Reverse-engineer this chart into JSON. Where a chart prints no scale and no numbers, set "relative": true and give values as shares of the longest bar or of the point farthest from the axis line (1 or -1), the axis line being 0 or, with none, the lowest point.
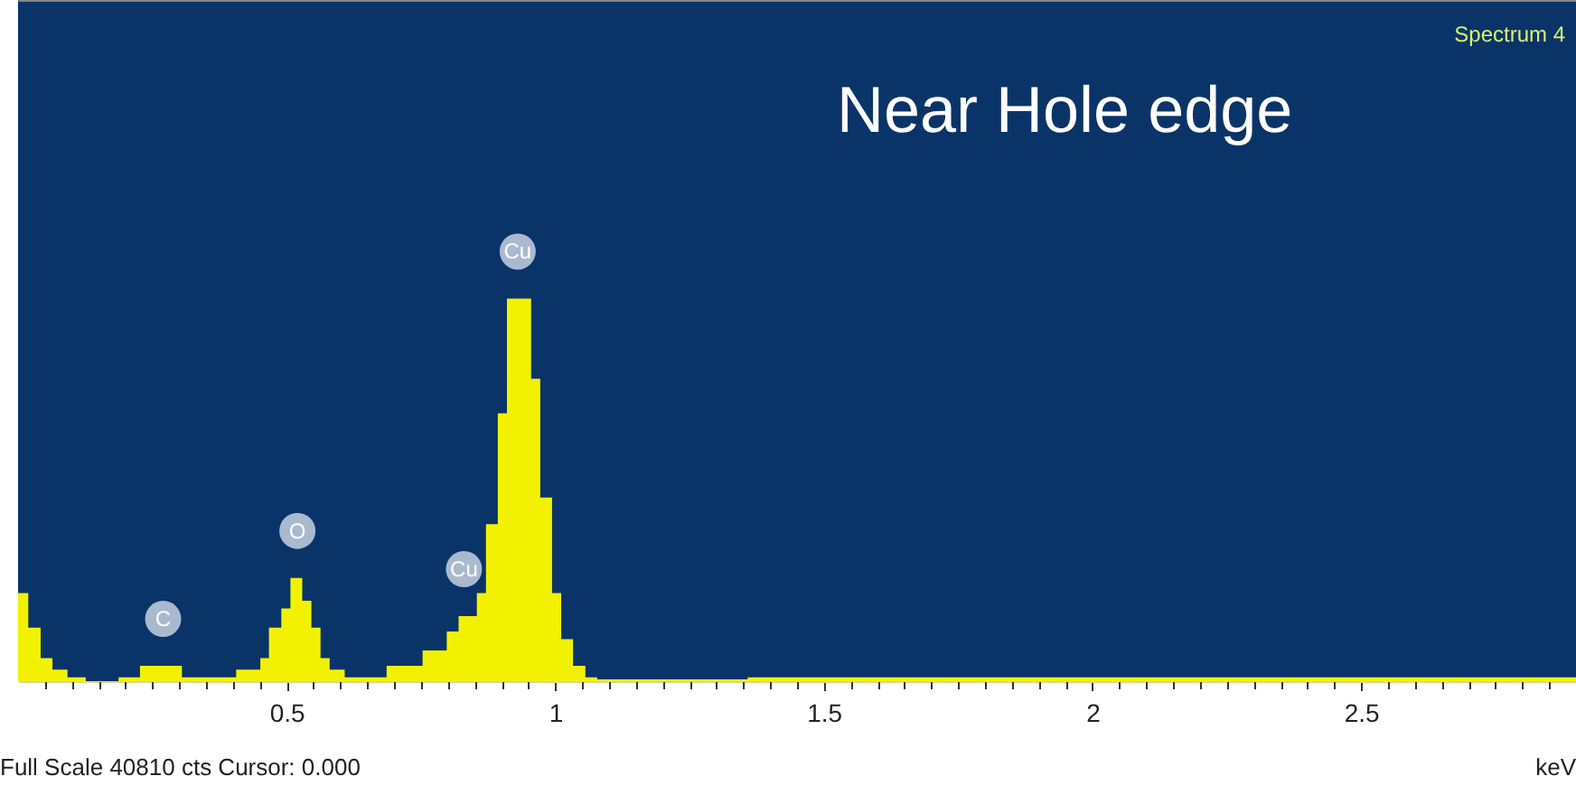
{
  "chart_data": {
    "type": "area",
    "line_style": "step",
    "relative": true,
    "title": "Near Hole edge",
    "xlabel": "keV",
    "color": "#f2f200",
    "x": [
      0.0,
      0.019,
      0.042,
      0.064,
      0.092,
      0.126,
      0.187,
      0.227,
      0.305,
      0.406,
      0.451,
      0.467,
      0.49,
      0.507,
      0.529,
      0.546,
      0.563,
      0.58,
      0.608,
      0.686,
      0.753,
      0.798,
      0.82,
      0.854,
      0.871,
      0.893,
      0.91,
      0.955,
      0.972,
      0.994,
      1.011,
      1.033,
      1.056,
      1.078,
      1.358,
      2.9
    ],
    "values": [
      0.23,
      0.14,
      0.06,
      0.03,
      0.01,
      0,
      0.01,
      0.04,
      0.01,
      0.03,
      0.06,
      0.14,
      0.19,
      0.27,
      0.21,
      0.14,
      0.06,
      0.03,
      0.01,
      0.04,
      0.08,
      0.13,
      0.17,
      0.23,
      0.41,
      0.7,
      1.0,
      0.79,
      0.48,
      0.23,
      0.11,
      0.04,
      0.01,
      0.005,
      0.01,
      0.01
    ],
    "xlim": [
      0,
      2.9
    ],
    "xticks": [
      {
        "value": 0.05,
        "label": null
      },
      {
        "value": 0.1,
        "label": null
      },
      {
        "value": 0.15,
        "label": null
      },
      {
        "value": 0.2,
        "label": null
      },
      {
        "value": 0.25,
        "label": null
      },
      {
        "value": 0.3,
        "label": null
      },
      {
        "value": 0.35,
        "label": null
      },
      {
        "value": 0.4,
        "label": null
      },
      {
        "value": 0.45,
        "label": null
      },
      0.5,
      {
        "value": 0.55,
        "label": null
      },
      {
        "value": 0.6,
        "label": null
      },
      {
        "value": 0.65,
        "label": null
      },
      {
        "value": 0.7,
        "label": null
      },
      {
        "value": 0.75,
        "label": null
      },
      {
        "value": 0.8,
        "label": null
      },
      {
        "value": 0.85,
        "label": null
      },
      {
        "value": 0.9,
        "label": null
      },
      {
        "value": 0.95,
        "label": null
      },
      1,
      {
        "value": 1.05,
        "label": null
      },
      {
        "value": 1.1,
        "label": null
      },
      {
        "value": 1.15,
        "label": null
      },
      {
        "value": 1.2,
        "label": null
      },
      {
        "value": 1.25,
        "label": null
      },
      {
        "value": 1.3,
        "label": null
      },
      {
        "value": 1.35,
        "label": null
      },
      {
        "value": 1.4,
        "label": null
      },
      {
        "value": 1.45,
        "label": null
      },
      1.5,
      {
        "value": 1.55,
        "label": null
      },
      {
        "value": 1.6,
        "label": null
      },
      {
        "value": 1.65,
        "label": null
      },
      {
        "value": 1.7,
        "label": null
      },
      {
        "value": 1.75,
        "label": null
      },
      {
        "value": 1.8,
        "label": null
      },
      {
        "value": 1.85,
        "label": null
      },
      {
        "value": 1.9,
        "label": null
      },
      {
        "value": 1.95,
        "label": null
      },
      2,
      {
        "value": 2.05,
        "label": null
      },
      {
        "value": 2.1,
        "label": null
      },
      {
        "value": 2.15,
        "label": null
      },
      {
        "value": 2.2,
        "label": null
      },
      {
        "value": 2.25,
        "label": null
      },
      {
        "value": 2.3,
        "label": null
      },
      {
        "value": 2.35,
        "label": null
      },
      {
        "value": 2.4,
        "label": null
      },
      {
        "value": 2.45,
        "label": null
      },
      2.5,
      {
        "value": 2.55,
        "label": null
      },
      {
        "value": 2.6,
        "label": null
      },
      {
        "value": 2.65,
        "label": null
      },
      {
        "value": 2.7,
        "label": null
      },
      {
        "value": 2.75,
        "label": null
      },
      {
        "value": 2.8,
        "label": null
      },
      {
        "value": 2.85,
        "label": null
      }
    ],
    "annotations": [
      "Spectrum 4",
      "Full Scale 40810 cts Cursor: 0.000",
      {
        "text": "C",
        "x": 0.27,
        "y": 0.04
      },
      {
        "text": "O",
        "x": 0.52,
        "y": 0.27
      },
      {
        "text": "Cu",
        "x": 0.83,
        "y": 0.17
      },
      {
        "text": "Cu",
        "x": 0.93,
        "y": 1.0
      }
    ]
  }
}
